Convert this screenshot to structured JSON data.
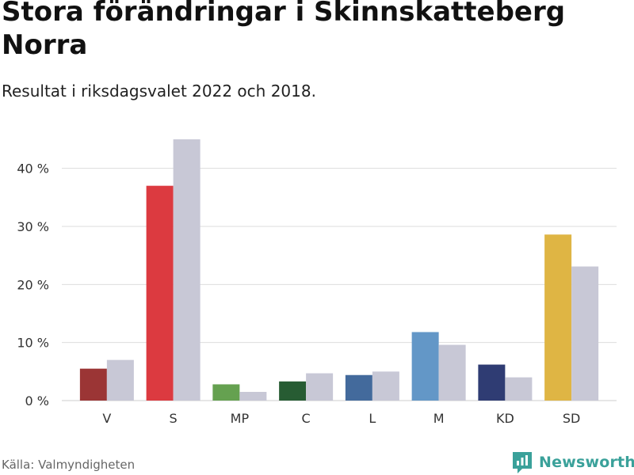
{
  "header": {
    "title": "Stora förändringar i Skinnskatteberg Norra",
    "subtitle": "Resultat i riksdagsvalet 2022 och 2018."
  },
  "footer": {
    "source": "Källa: Valmyndigheten",
    "brand": "Newsworthy"
  },
  "colors": {
    "previous": "#c8c8d6",
    "grid": "#dddddd",
    "brand": "#3aa19a"
  },
  "chart_data": {
    "type": "bar",
    "title": "Stora förändringar i Skinnskatteberg Norra",
    "subtitle": "Resultat i riksdagsvalet 2022 och 2018.",
    "xlabel": "",
    "ylabel": "",
    "ylim": [
      0,
      45
    ],
    "yticks": [
      0,
      10,
      20,
      30,
      40
    ],
    "ytick_labels": [
      "0 %",
      "10 %",
      "20 %",
      "30 %",
      "40 %"
    ],
    "grid": true,
    "categories": [
      "V",
      "S",
      "MP",
      "C",
      "L",
      "M",
      "KD",
      "SD"
    ],
    "party_colors": [
      "#9b3535",
      "#dc3a40",
      "#65a150",
      "#275c33",
      "#436a9c",
      "#6397c7",
      "#2f3c73",
      "#dfb544"
    ],
    "series": [
      {
        "name": "2022",
        "values": [
          5.5,
          37.0,
          2.8,
          3.3,
          4.4,
          11.8,
          6.2,
          28.6
        ]
      },
      {
        "name": "2018",
        "values": [
          7.0,
          45.0,
          1.5,
          4.7,
          5.0,
          9.6,
          4.0,
          23.1
        ]
      }
    ]
  }
}
